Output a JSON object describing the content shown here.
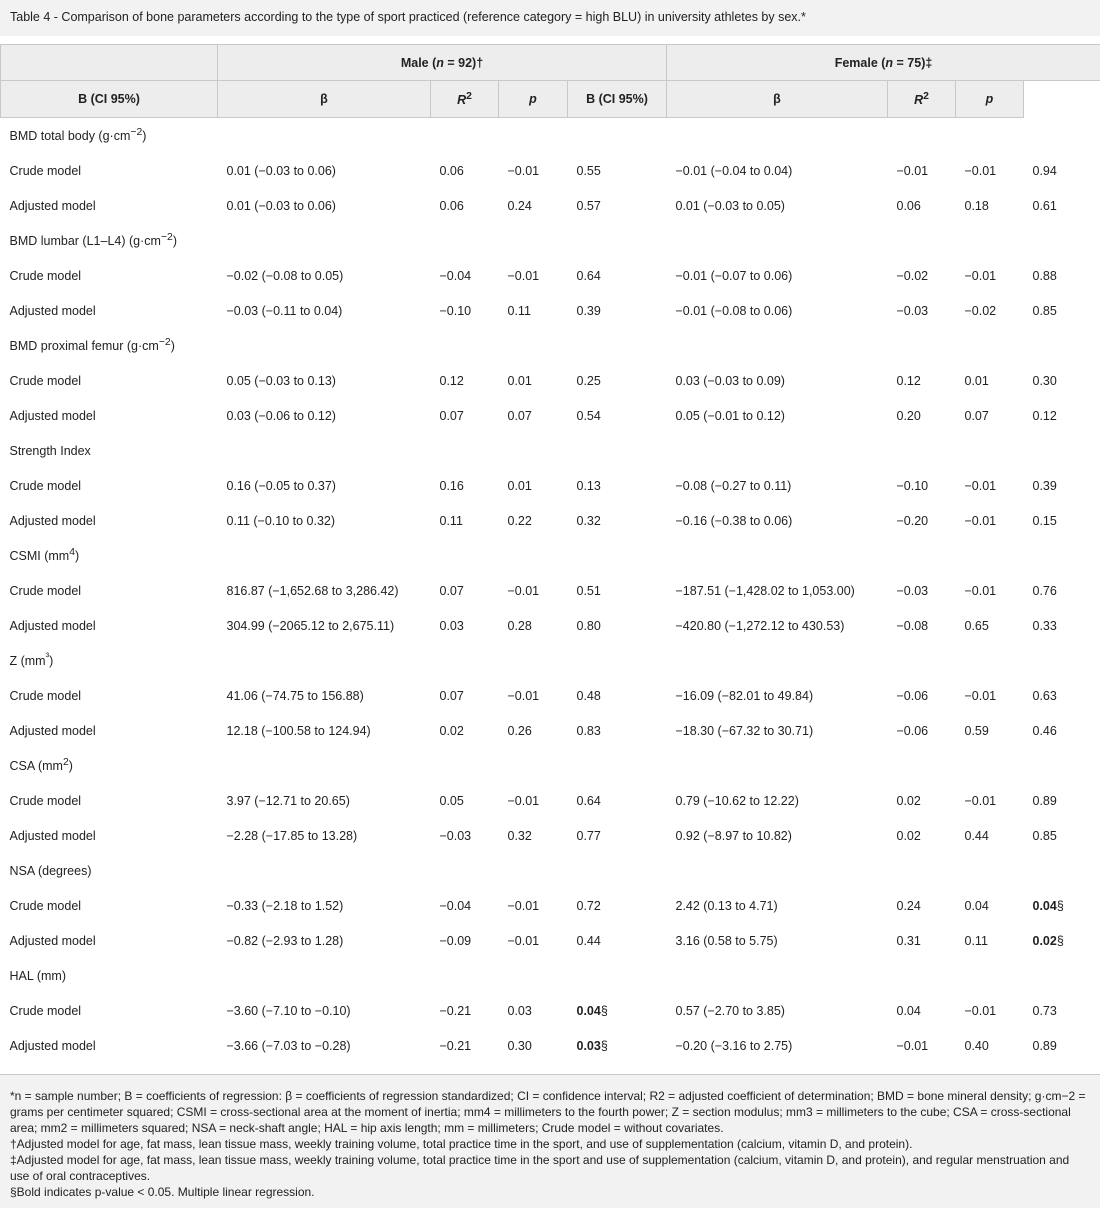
{
  "caption": "Table 4 - Comparison of bone parameters according to the type of sport practiced (reference category = high BLU) in university athletes by sex.*",
  "groups": {
    "male": {
      "label": "Male (",
      "n_var": "n",
      "n_rest": " = 92)†"
    },
    "female": {
      "label": "Female (",
      "n_var": "n",
      "n_rest": " = 75)‡"
    }
  },
  "columns": {
    "b_ci_1": "B (CI 95%)",
    "beta_1": "β",
    "r2_1": "R",
    "r2_sup": "2",
    "p_1": "p",
    "b_ci_2": "B (CI 95%)",
    "beta_2": "β",
    "r2_2": "R",
    "p_2": "p"
  },
  "sections": [
    {
      "title": "BMD total body (g·cm",
      "sup": "−2",
      "tail": ")",
      "rows": [
        {
          "label": "Crude model",
          "cells": [
            "0.01 (−0.03 to 0.06)",
            "0.06",
            "−0.01",
            "0.55",
            "−0.01 (−0.04 to 0.04)",
            "−0.01",
            "−0.01",
            "0.94"
          ]
        },
        {
          "label": "Adjusted model",
          "cells": [
            "0.01 (−0.03 to 0.06)",
            "0.06",
            "0.24",
            "0.57",
            "0.01 (−0.03 to 0.05)",
            "0.06",
            "0.18",
            "0.61"
          ]
        }
      ]
    },
    {
      "title": "BMD lumbar (L1–L4) (g·cm",
      "sup": "−2",
      "tail": ")",
      "rows": [
        {
          "label": "Crude model",
          "cells": [
            "−0.02 (−0.08 to 0.05)",
            "−0.04",
            "−0.01",
            "0.64",
            "−0.01 (−0.07 to 0.06)",
            "−0.02",
            "−0.01",
            "0.88"
          ]
        },
        {
          "label": "Adjusted model",
          "cells": [
            "−0.03 (−0.11 to 0.04)",
            "−0.10",
            "0.11",
            "0.39",
            "−0.01 (−0.08 to 0.06)",
            "−0.03",
            "−0.02",
            "0.85"
          ]
        }
      ]
    },
    {
      "title": "BMD proximal femur (g·cm",
      "sup": "−2",
      "tail": ")",
      "rows": [
        {
          "label": "Crude model",
          "cells": [
            "0.05 (−0.03 to 0.13)",
            "0.12",
            "0.01",
            "0.25",
            "0.03 (−0.03 to 0.09)",
            "0.12",
            "0.01",
            "0.30"
          ]
        },
        {
          "label": "Adjusted model",
          "cells": [
            "0.03 (−0.06 to 0.12)",
            "0.07",
            "0.07",
            "0.54",
            "0.05 (−0.01 to 0.12)",
            "0.20",
            "0.07",
            "0.12"
          ]
        }
      ]
    },
    {
      "title": "Strength Index",
      "sup": "",
      "tail": "",
      "rows": [
        {
          "label": "Crude model",
          "cells": [
            "0.16 (−0.05 to 0.37)",
            "0.16",
            "0.01",
            "0.13",
            "−0.08 (−0.27 to 0.11)",
            "−0.10",
            "−0.01",
            "0.39"
          ]
        },
        {
          "label": "Adjusted model",
          "cells": [
            "0.11 (−0.10 to 0.32)",
            "0.11",
            "0.22",
            "0.32",
            "−0.16 (−0.38 to 0.06)",
            "−0.20",
            "−0.01",
            "0.15"
          ]
        }
      ]
    },
    {
      "title": "CSMI (mm",
      "sup": "4",
      "tail": ")",
      "rows": [
        {
          "label": "Crude model",
          "cells": [
            "816.87 (−1,652.68 to 3,286.42)",
            "0.07",
            "−0.01",
            "0.51",
            "−187.51 (−1,428.02 to 1,053.00)",
            "−0.03",
            "−0.01",
            "0.76"
          ]
        },
        {
          "label": "Adjusted model",
          "cells": [
            "304.99 (−2065.12 to 2,675.11)",
            "0.03",
            "0.28",
            "0.80",
            "−420.80 (−1,272.12 to 430.53)",
            "−0.08",
            "0.65",
            "0.33"
          ]
        }
      ]
    },
    {
      "title": "Z (mm",
      "sup": "³",
      "tail": ")",
      "rows": [
        {
          "label": "Crude model",
          "cells": [
            "41.06 (−74.75 to 156.88)",
            "0.07",
            "−0.01",
            "0.48",
            "−16.09 (−82.01 to 49.84)",
            "−0.06",
            "−0.01",
            "0.63"
          ]
        },
        {
          "label": "Adjusted model",
          "cells": [
            "12.18 (−100.58 to 124.94)",
            "0.02",
            "0.26",
            "0.83",
            "−18.30 (−67.32 to 30.71)",
            "−0.06",
            "0.59",
            "0.46"
          ]
        }
      ]
    },
    {
      "title": "CSA (mm",
      "sup": "2",
      "tail": ")",
      "rows": [
        {
          "label": "Crude model",
          "cells": [
            "3.97 (−12.71 to 20.65)",
            "0.05",
            "−0.01",
            "0.64",
            "0.79 (−10.62 to 12.22)",
            "0.02",
            "−0.01",
            "0.89"
          ]
        },
        {
          "label": "Adjusted model",
          "cells": [
            "−2.28 (−17.85 to 13.28)",
            "−0.03",
            "0.32",
            "0.77",
            "0.92 (−8.97 to 10.82)",
            "0.02",
            "0.44",
            "0.85"
          ]
        }
      ]
    },
    {
      "title": "NSA (degrees)",
      "sup": "",
      "tail": "",
      "rows": [
        {
          "label": "Crude model",
          "cells": [
            "−0.33 (−2.18 to 1.52)",
            "−0.04",
            "−0.01",
            "0.72",
            "2.42 (0.13 to 4.71)",
            "0.24",
            "0.04",
            "0.04"
          ],
          "mark": "§",
          "bold_idx": 7
        },
        {
          "label": "Adjusted model",
          "cells": [
            "−0.82 (−2.93 to 1.28)",
            "−0.09",
            "−0.01",
            "0.44",
            "3.16 (0.58 to 5.75)",
            "0.31",
            "0.11",
            "0.02"
          ],
          "mark": "§",
          "bold_idx": 7
        }
      ]
    },
    {
      "title": "HAL (mm)",
      "sup": "",
      "tail": "",
      "rows": [
        {
          "label": "Crude model",
          "cells": [
            "−3.60 (−7.10 to −0.10)",
            "−0.21",
            "0.03",
            "0.04",
            "0.57 (−2.70 to 3.85)",
            "0.04",
            "−0.01",
            "0.73"
          ],
          "mark": "§",
          "bold_idx": 3
        },
        {
          "label": "Adjusted model",
          "cells": [
            "−3.66 (−7.03 to −0.28)",
            "−0.21",
            "0.30",
            "0.03",
            "−0.20 (−3.16 to 2.75)",
            "−0.01",
            "0.40",
            "0.89"
          ],
          "mark": "§",
          "bold_idx": 3
        }
      ]
    }
  ],
  "footnotes": [
    "*n = sample number; B = coefficients of regression: β = coefficients of regression standardized; CI = confidence interval; R2 = adjusted coefficient of determination; BMD = bone mineral density; g·cm−2 = grams per centimeter squared; CSMI = cross-sectional area at the moment of inertia; mm4 = millimeters to the fourth power; Z = section modulus; mm3 = millimeters to the cube; CSA = cross-sectional area; mm2 = millimeters squared; NSA = neck-shaft angle; HAL = hip axis length; mm = millimeters; Crude model = without covariates.",
    "†Adjusted model for age, fat mass, lean tissue mass, weekly training volume, total practice time in the sport, and use of supplementation (calcium, vitamin D, and protein).",
    "‡Adjusted model for age, fat mass, lean tissue mass, weekly training volume, total practice time in the sport and use of supplementation (calcium, vitamin D, and protein), and regular menstruation and use of oral contraceptives.",
    "§Bold indicates p-value < 0.05. Multiple linear regression."
  ]
}
